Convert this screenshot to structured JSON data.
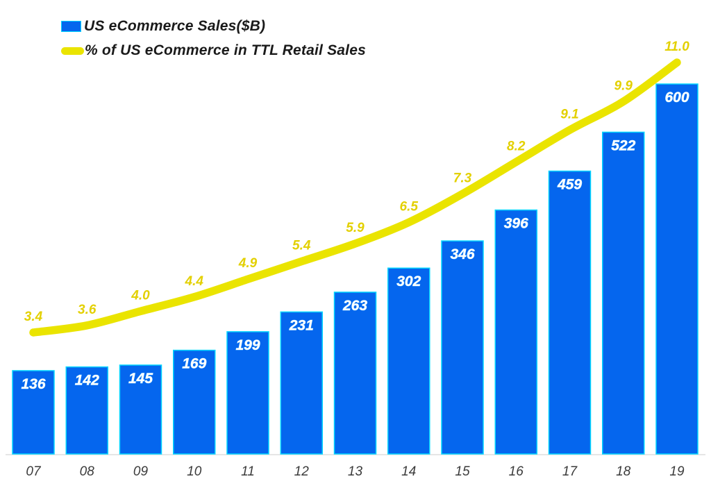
{
  "legend": {
    "items": [
      {
        "label": "US eCommerce Sales($B)",
        "series": "bar"
      },
      {
        "label": "% of US eCommerce in TTL Retail Sales",
        "series": "line"
      }
    ]
  },
  "colors": {
    "bar_fill": "#0566EE",
    "bar_edge": "#00D5FF",
    "bar_label": "#FFFFFF",
    "bar_label_halo": "#9FE8FF",
    "line": "#EAE400",
    "line_label": "#E3D000",
    "axis_line": "#E6E6E6",
    "tick_label": "#3B3B3B"
  },
  "chart_data": {
    "type": "bar",
    "subtype": "bar-with-line-overlay",
    "title": "",
    "xlabel": "",
    "ylabel": "",
    "grid": false,
    "legend_position": "top-left",
    "categories": [
      "07",
      "08",
      "09",
      "10",
      "11",
      "12",
      "13",
      "14",
      "15",
      "16",
      "17",
      "18",
      "19"
    ],
    "series": [
      {
        "name": "US eCommerce Sales($B)",
        "type": "bar",
        "axis": "left",
        "axis_range": [
          0,
          600
        ],
        "values": [
          136,
          142,
          145,
          169,
          199,
          231,
          263,
          302,
          346,
          396,
          459,
          522,
          600
        ],
        "labels": [
          "136",
          "142",
          "145",
          "169",
          "199",
          "231",
          "263",
          "302",
          "346",
          "396",
          "459",
          "522",
          "600"
        ]
      },
      {
        "name": "% of US eCommerce in TTL Retail Sales",
        "type": "line",
        "axis": "right",
        "axis_range": [
          3.4,
          11.0
        ],
        "values": [
          3.4,
          3.6,
          4.0,
          4.4,
          4.9,
          5.4,
          5.9,
          6.5,
          7.3,
          8.2,
          9.1,
          9.9,
          11.0
        ],
        "labels": [
          "3.4",
          "3.6",
          "4.0",
          "4.4",
          "4.9",
          "5.4",
          "5.9",
          "6.5",
          "7.3",
          "8.2",
          "9.1",
          "9.9",
          "11.0"
        ]
      }
    ]
  }
}
